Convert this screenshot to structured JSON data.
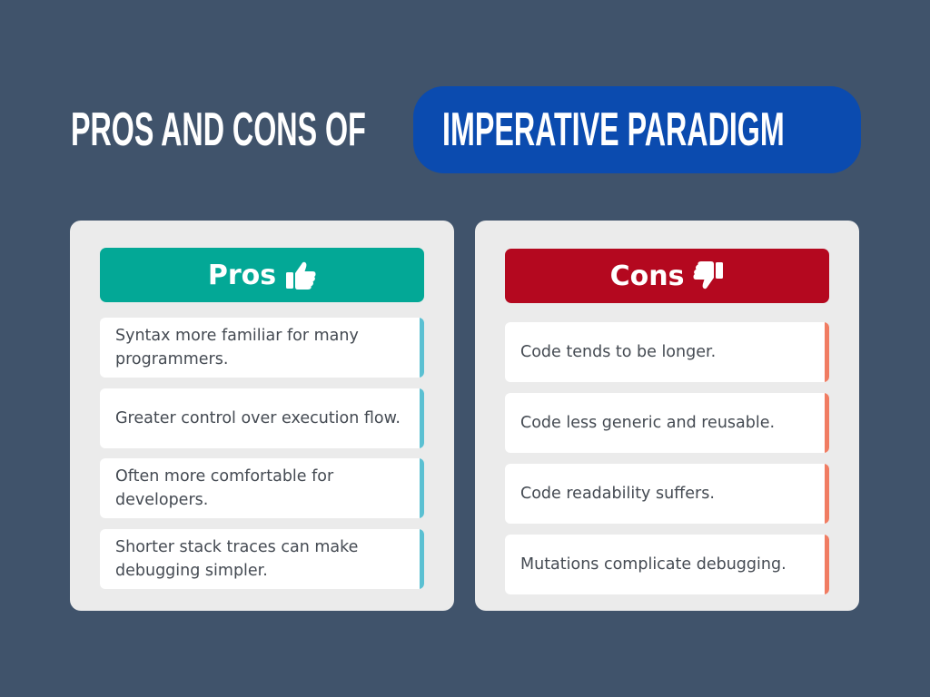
{
  "title": {
    "prefix": "PROS AND CONS OF",
    "highlight": "IMPERATIVE PARADIGM"
  },
  "colors": {
    "background": "#40536b",
    "title_pill": "#0b4baf",
    "pros_header": "#03a896",
    "cons_header": "#b4081f",
    "pros_accent": "#5bc0d2",
    "cons_accent": "#f07c62",
    "panel_bg": "#ebebeb"
  },
  "pros": {
    "label": "Pros",
    "icon": "thumbs-up-icon",
    "items": [
      "Syntax more familiar for many programmers.",
      "Greater control over execution flow.",
      "Often more comfortable for developers.",
      "Shorter stack traces can make debugging simpler."
    ]
  },
  "cons": {
    "label": "Cons",
    "icon": "thumbs-down-icon",
    "items": [
      "Code tends to be longer.",
      "Code less generic and reusable.",
      "Code readability suffers.",
      "Mutations complicate debugging."
    ]
  }
}
